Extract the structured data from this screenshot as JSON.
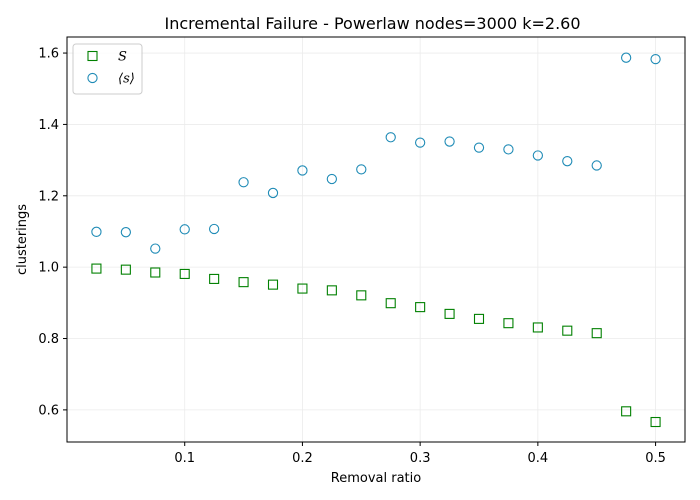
{
  "chart_data": {
    "type": "scatter",
    "title": "Incremental Failure - Powerlaw nodes=3000 k=2.60",
    "xlabel": "Removal ratio",
    "ylabel": "clusterings",
    "xlim": [
      0.0,
      0.525
    ],
    "ylim": [
      0.51,
      1.645
    ],
    "xticks": [
      0.1,
      0.2,
      0.3,
      0.4,
      0.5
    ],
    "xtick_labels": [
      "0.1",
      "0.2",
      "0.3",
      "0.4",
      "0.5"
    ],
    "yticks": [
      0.6,
      0.8,
      1.0,
      1.2,
      1.4,
      1.6
    ],
    "ytick_labels": [
      "0.6",
      "0.8",
      "1.0",
      "1.2",
      "1.4",
      "1.6"
    ],
    "grid": true,
    "legend_position": "upper-left",
    "x": [
      0.025,
      0.05,
      0.075,
      0.1,
      0.125,
      0.15,
      0.175,
      0.2,
      0.225,
      0.25,
      0.275,
      0.3,
      0.325,
      0.35,
      0.375,
      0.4,
      0.425,
      0.45,
      0.475,
      0.5
    ],
    "series": [
      {
        "name": "S",
        "marker": "square",
        "color": "#008000",
        "values": [
          0.996,
          0.993,
          0.985,
          0.981,
          0.967,
          0.958,
          0.951,
          0.94,
          0.935,
          0.921,
          0.899,
          0.888,
          0.869,
          0.855,
          0.843,
          0.831,
          0.822,
          0.815,
          0.596,
          0.566
        ]
      },
      {
        "name": "⟨s⟩",
        "marker": "circle",
        "color": "#1f8bb6",
        "values": [
          1.099,
          1.098,
          1.052,
          1.106,
          1.107,
          1.238,
          1.208,
          1.271,
          1.247,
          1.274,
          1.364,
          1.349,
          1.352,
          1.335,
          1.33,
          1.313,
          1.297,
          1.285,
          1.587,
          1.583
        ]
      }
    ]
  }
}
